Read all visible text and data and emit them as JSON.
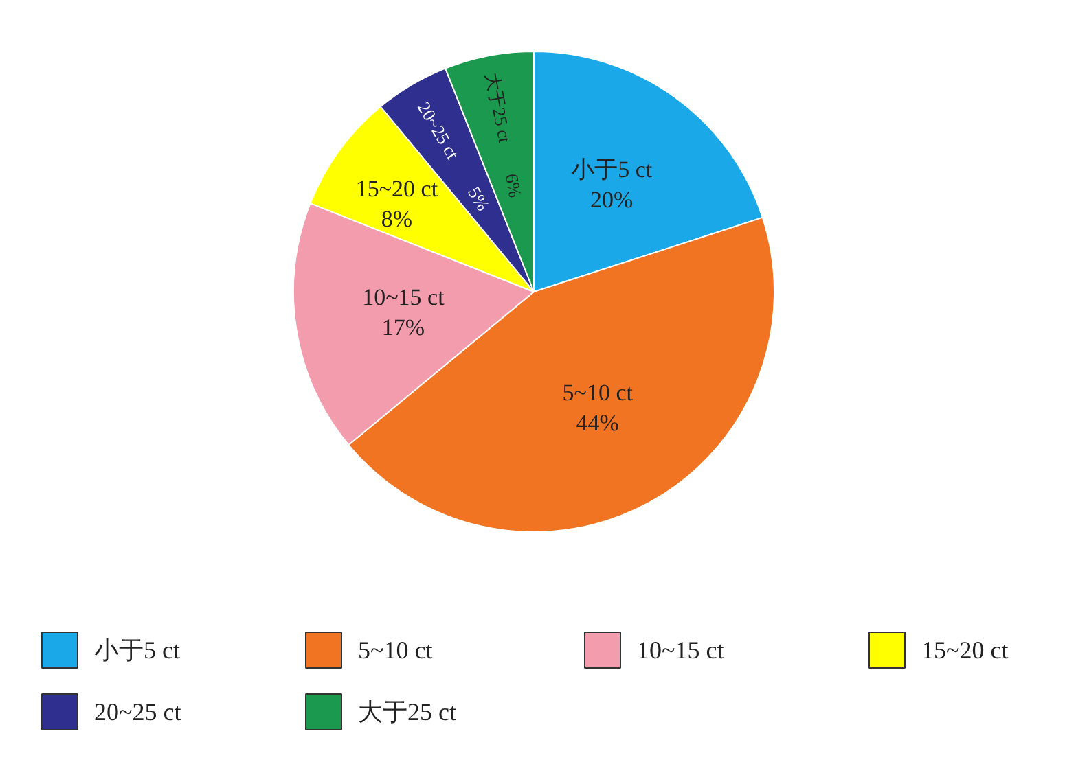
{
  "chart_data": {
    "type": "pie",
    "categories": [
      "小于5 ct",
      "5~10 ct",
      "10~15 ct",
      "15~20 ct",
      "20~25 ct",
      "大于25 ct"
    ],
    "values": [
      20,
      44,
      17,
      8,
      5,
      6
    ],
    "colors": [
      "#1ba8e8",
      "#f07422",
      "#f29cae",
      "#ffff00",
      "#2f2f8f",
      "#1b9a4f"
    ],
    "value_labels": [
      "20%",
      "44%",
      "17%",
      "8%",
      "5%",
      "6%"
    ],
    "legend": "bottom"
  }
}
